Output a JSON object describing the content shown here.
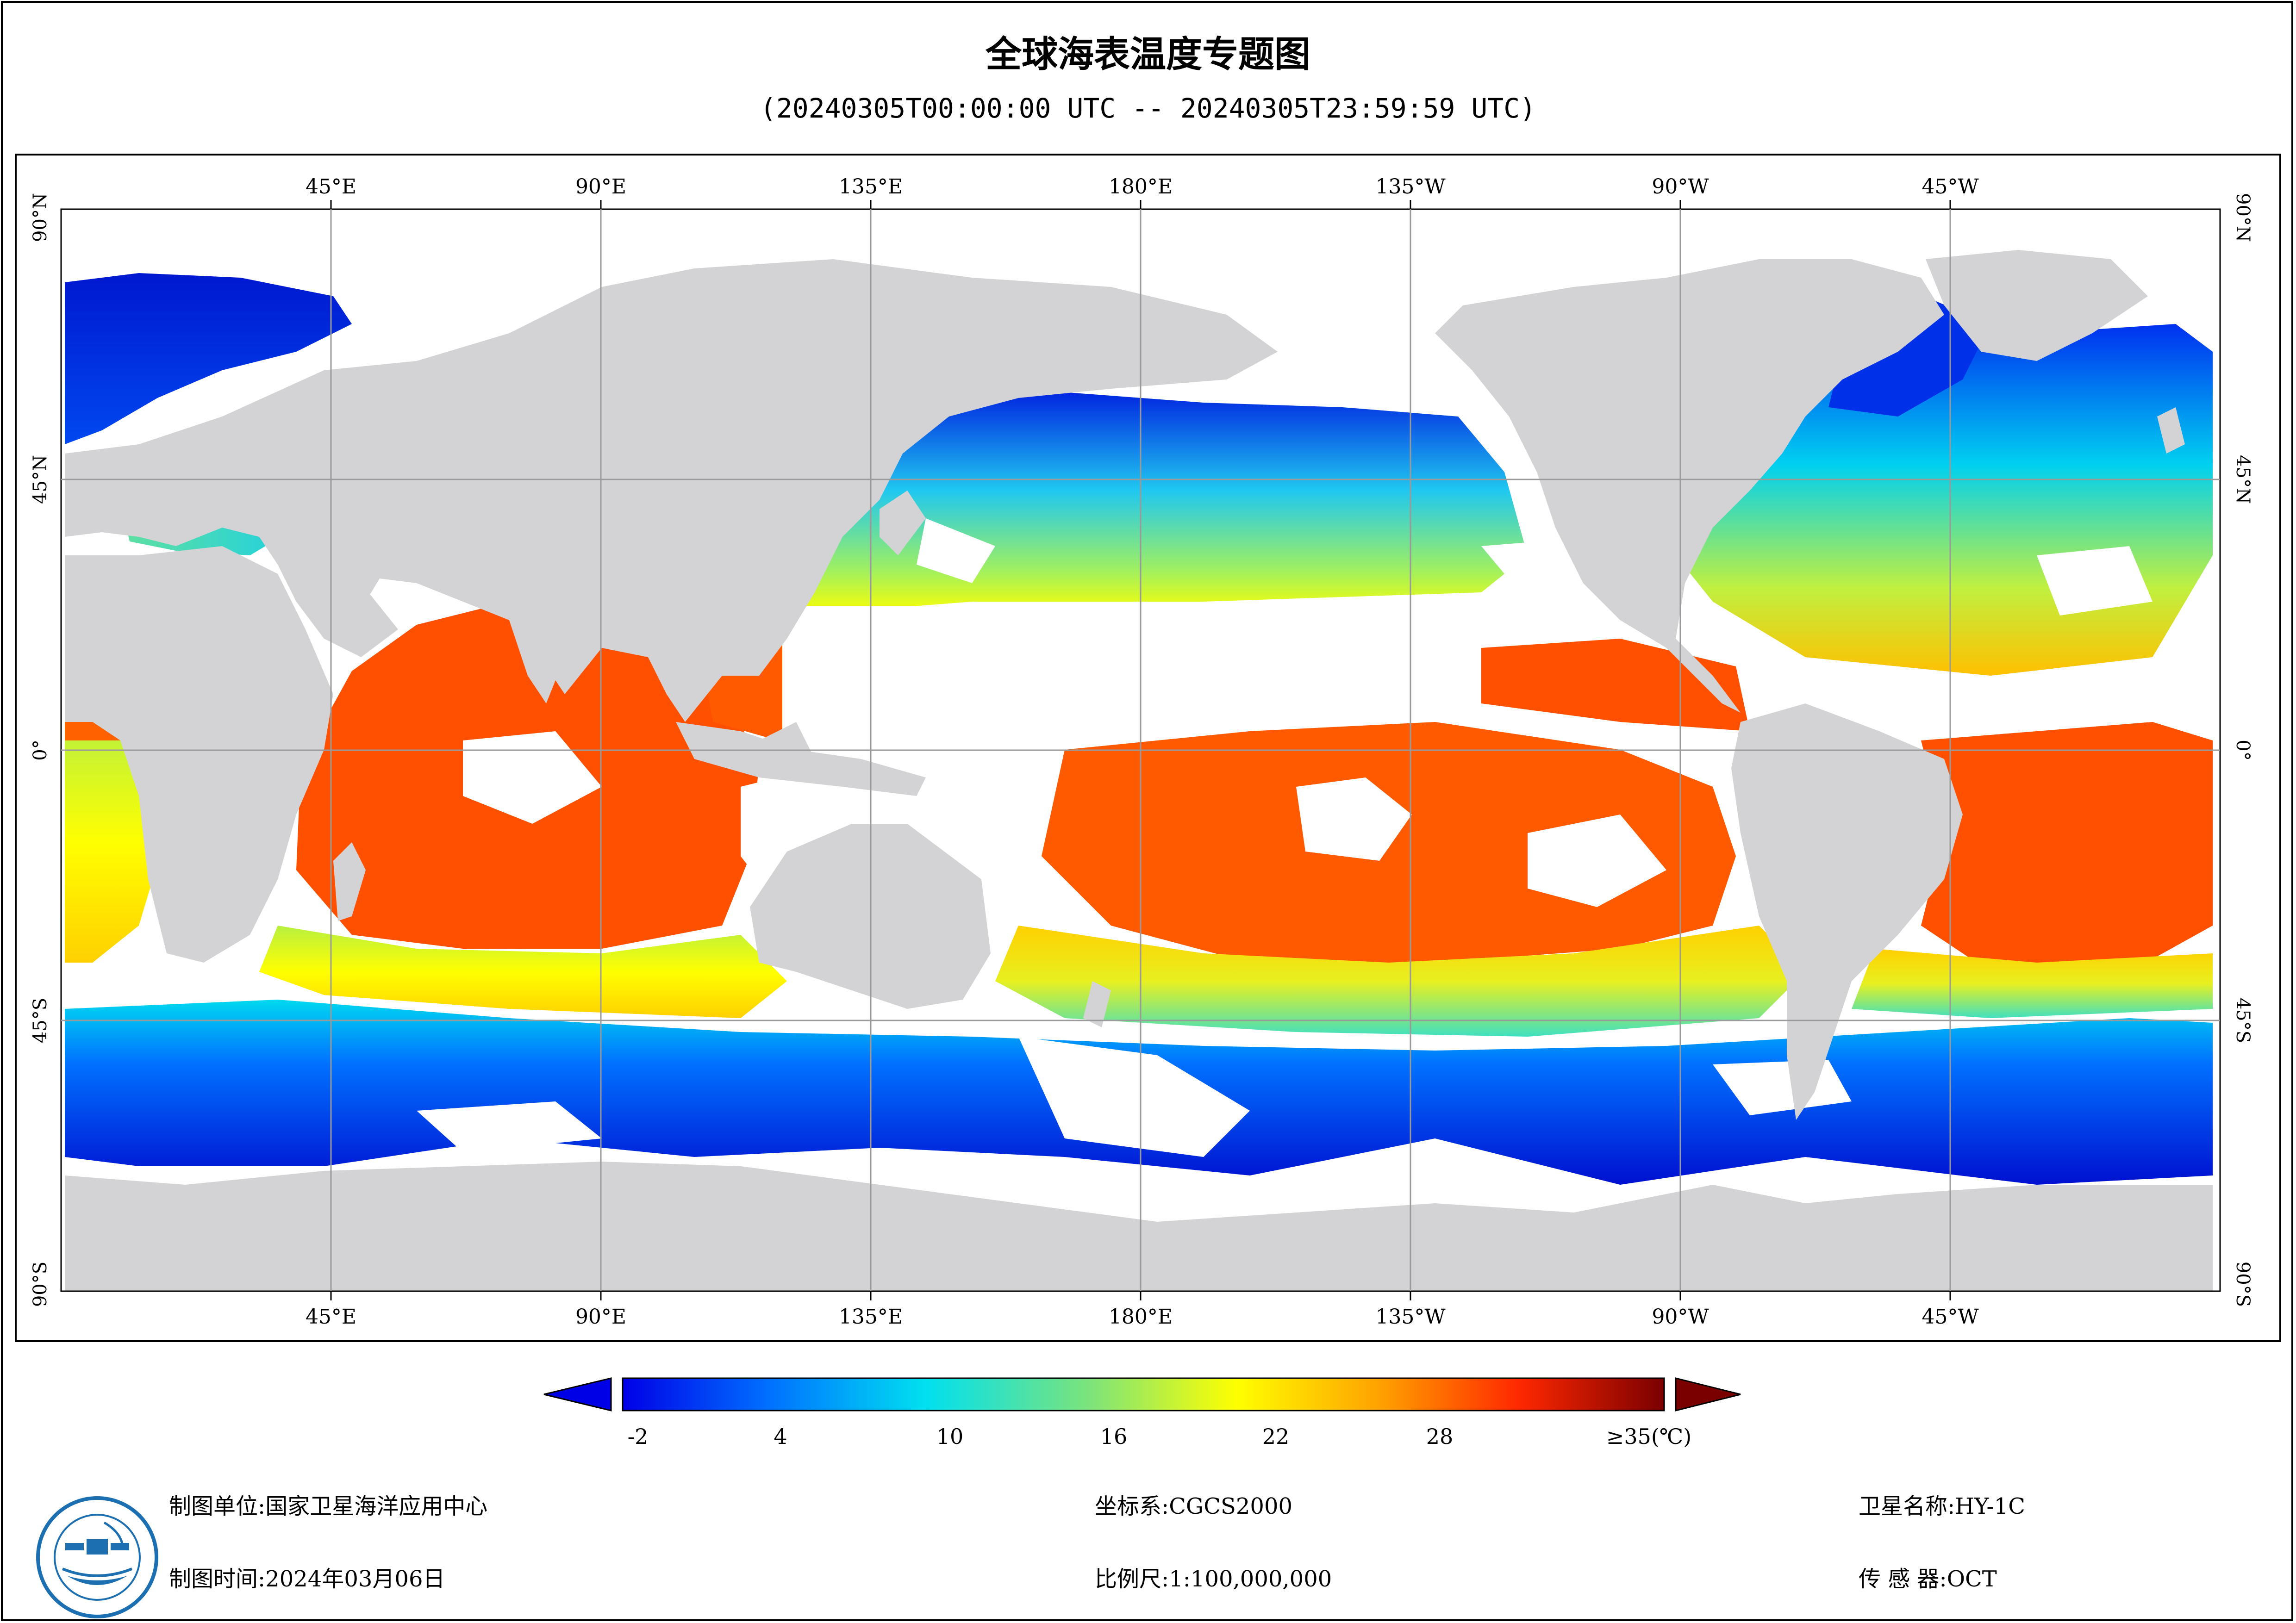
{
  "title": "全球海表温度专题图",
  "subtitle": "(20240305T00:00:00 UTC -- 20240305T23:59:59 UTC)",
  "map": {
    "top_lon_labels": [
      "45°E",
      "90°E",
      "135°E",
      "180°E",
      "135°W",
      "90°W",
      "45°W"
    ],
    "bottom_lon_labels": [
      "45°E",
      "90°E",
      "135°E",
      "180°E",
      "135°W",
      "90°W",
      "45°W"
    ],
    "lat_labels": [
      "90°N",
      "45°N",
      "0°",
      "45°S",
      "90°S"
    ],
    "colors": {
      "land": "#d3d3d5",
      "ocean_nodata": "#ffffff",
      "grid": "#9a9a9a"
    }
  },
  "legend": {
    "tick_labels": [
      "-2",
      "4",
      "10",
      "16",
      "22",
      "28",
      "≥35(℃)"
    ],
    "colors": [
      "#0000e6",
      "#0070ff",
      "#00e0f0",
      "#7ee37a",
      "#ffff00",
      "#ff9f00",
      "#ff2800",
      "#7a0000"
    ]
  },
  "footer": {
    "unit_label": "制图单位:",
    "unit_value": "国家卫星海洋应用中心",
    "time_label": "制图时间:",
    "time_value": "2024年03月06日",
    "crs_label": "坐标系:",
    "crs_value": "CGCS2000",
    "scale_label": "比例尺:",
    "scale_value": "1:100,000,000",
    "sat_label": "卫星名称:",
    "sat_value": "HY-1C",
    "sensor_label": "传 感 器:",
    "sensor_value": "OCT"
  }
}
